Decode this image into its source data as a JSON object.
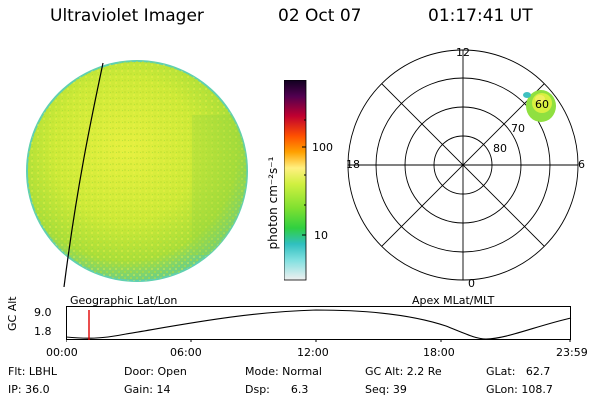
{
  "header": {
    "title": "Ultraviolet Imager",
    "date": "02 Oct 07",
    "time": "01:17:41 UT"
  },
  "colorbar": {
    "label": "photon cm⁻²s⁻¹",
    "ticks": [
      "100",
      "10"
    ]
  },
  "geo_panel": {
    "label": "Geographic Lat/Lon"
  },
  "polar_panel": {
    "label": "Apex MLat/MLT",
    "mlt_labels": {
      "top": "12",
      "left": "18",
      "right": "6",
      "bottom": "0"
    },
    "mlat_labels": [
      "80",
      "70",
      "60"
    ]
  },
  "altitude_plot": {
    "ylabel": "GC Alt",
    "yticks": [
      "9.0",
      "1.8"
    ],
    "xticks": [
      "00:00",
      "06:00",
      "12:00",
      "18:00",
      "23:59"
    ]
  },
  "info": {
    "flt": "Flt: LBHL",
    "ip": "IP: 36.0",
    "door": "Door: Open",
    "gain": "Gain: 14",
    "mode": "Mode: Normal",
    "dsp": "Dsp:      6.3",
    "gcalt": "GC Alt: 2.2 Re",
    "seq": "Seq: 39",
    "glat": "GLat:   62.7",
    "glon": "GLon: 108.7"
  },
  "colors": {
    "disk_green": "#b8e030",
    "disk_yellow": "#e8f040",
    "disk_edge": "#50d0c0",
    "marker": "#e00000"
  }
}
